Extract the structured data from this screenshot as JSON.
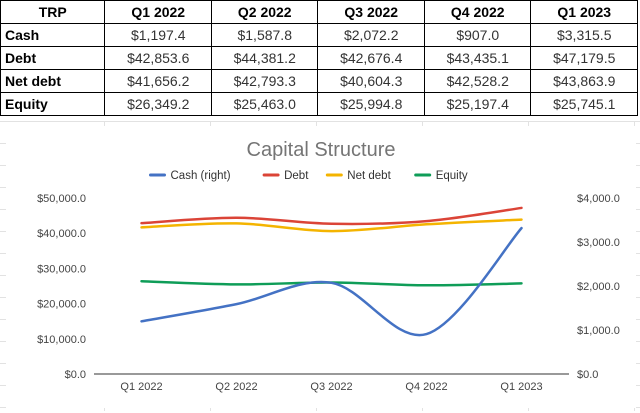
{
  "table": {
    "corner_label": "TRP",
    "headers": [
      "Q1 2022",
      "Q2 2022",
      "Q3 2022",
      "Q4 2022",
      "Q1 2023"
    ],
    "rows": [
      {
        "label": "Cash",
        "values": [
          "$1,197.4",
          "$1,587.8",
          "$2,072.2",
          "$907.0",
          "$3,315.5"
        ]
      },
      {
        "label": "Debt",
        "values": [
          "$42,853.6",
          "$44,381.2",
          "$42,676.4",
          "$43,435.1",
          "$47,179.5"
        ]
      },
      {
        "label": "Net debt",
        "values": [
          "$41,656.2",
          "$42,793.3",
          "$40,604.3",
          "$42,528.2",
          "$43,863.9"
        ]
      },
      {
        "label": "Equity",
        "values": [
          "$26,349.2",
          "$25,463.0",
          "$25,994.8",
          "$25,197.4",
          "$25,745.1"
        ]
      }
    ]
  },
  "chart_data": {
    "type": "line",
    "title": "Capital Structure",
    "categories": [
      "Q1 2022",
      "Q2 2022",
      "Q3 2022",
      "Q4 2022",
      "Q1 2023"
    ],
    "left_axis": {
      "ylim": [
        0,
        50000
      ],
      "ticks": [
        0,
        10000,
        20000,
        30000,
        40000,
        50000
      ],
      "tick_labels": [
        "$0.0",
        "$10,000.0",
        "$20,000.0",
        "$30,000.0",
        "$40,000.0",
        "$50,000.0"
      ]
    },
    "right_axis": {
      "ylim": [
        0,
        4000
      ],
      "ticks": [
        0,
        1000,
        2000,
        3000,
        4000
      ],
      "tick_labels": [
        "$0.0",
        "$1,000.0",
        "$2,000.0",
        "$3,000.0",
        "$4,000.0"
      ]
    },
    "series": [
      {
        "name": "Cash (right)",
        "axis": "right",
        "color": "#4472c4",
        "values": [
          1197.4,
          1587.8,
          2072.2,
          907.0,
          3315.5
        ]
      },
      {
        "name": "Debt",
        "axis": "left",
        "color": "#db4437",
        "values": [
          42853.6,
          44381.2,
          42676.4,
          43435.1,
          47179.5
        ]
      },
      {
        "name": "Net debt",
        "axis": "left",
        "color": "#f4b400",
        "values": [
          41656.2,
          42793.3,
          40604.3,
          42528.2,
          43863.9
        ]
      },
      {
        "name": "Equity",
        "axis": "left",
        "color": "#0f9d58",
        "values": [
          26349.2,
          25463.0,
          25994.8,
          25197.4,
          25745.1
        ]
      }
    ],
    "legend_position": "top"
  }
}
